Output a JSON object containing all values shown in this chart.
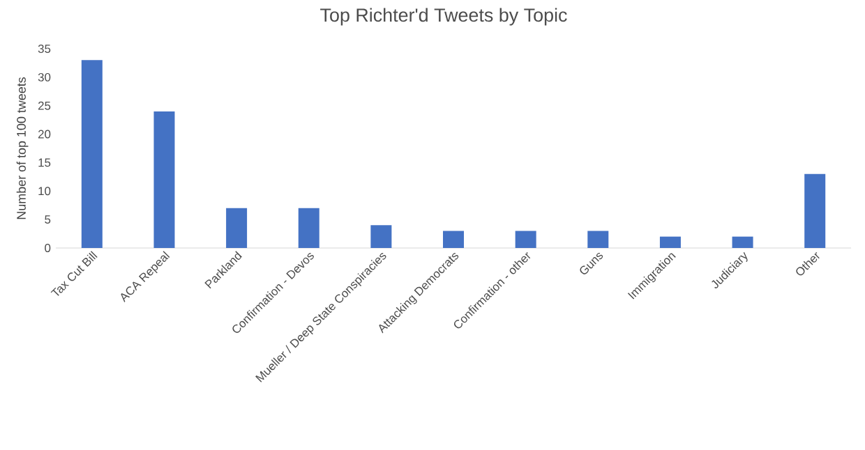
{
  "chart_data": {
    "type": "bar",
    "title": "Top Richter'd Tweets by Topic",
    "ylabel": "Number of top 100 tweets",
    "categories": [
      "Tax Cut Bill",
      "ACA Repeal",
      "Parkland",
      "Confirmation - Devos",
      "Mueller / Deep State Conspiracies",
      "Attacking Democrats",
      "Confirmation - other",
      "Guns",
      "Immigration",
      "Judiciary",
      "Other"
    ],
    "values": [
      33,
      24,
      7,
      7,
      4,
      3,
      3,
      3,
      2,
      2,
      13
    ],
    "color": "#4472c4",
    "ylim": [
      0,
      35
    ],
    "yticks": [
      0,
      5,
      10,
      15,
      20,
      25,
      30,
      35
    ]
  }
}
